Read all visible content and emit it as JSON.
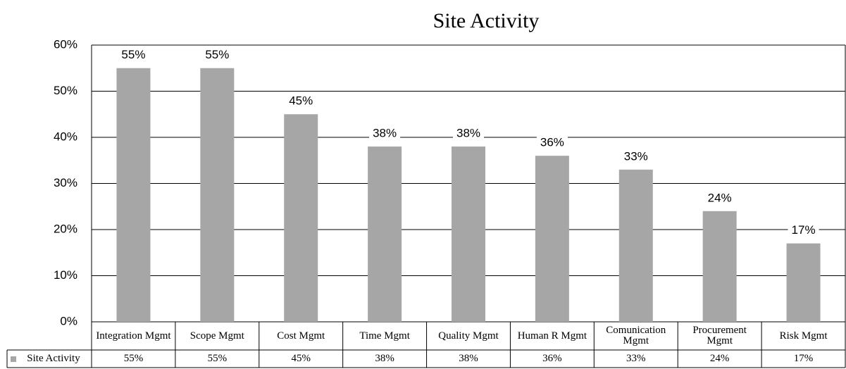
{
  "chart_data": {
    "type": "bar",
    "title": "Site Activity",
    "categories": [
      "Integration Mgmt",
      "Scope Mgmt",
      "Cost Mgmt",
      "Time Mgmt",
      "Quality Mgmt",
      "Human R Mgmt",
      "Comunication Mgmt",
      "Procurement Mgmt",
      "Risk Mgmt"
    ],
    "series": [
      {
        "name": "Site Activity",
        "color": "#a6a6a6",
        "values": [
          55,
          55,
          45,
          38,
          38,
          36,
          33,
          24,
          17
        ],
        "value_labels": [
          "55%",
          "55%",
          "45%",
          "38%",
          "38%",
          "36%",
          "33%",
          "24%",
          "17%"
        ]
      }
    ],
    "ylim": [
      0,
      60
    ],
    "yticks": [
      {
        "value": 0,
        "label": "0%"
      },
      {
        "value": 10,
        "label": "10%"
      },
      {
        "value": 20,
        "label": "20%"
      },
      {
        "value": 30,
        "label": "30%"
      },
      {
        "value": 40,
        "label": "40%"
      },
      {
        "value": 50,
        "label": "50%"
      },
      {
        "value": 60,
        "label": "60%"
      }
    ],
    "grid": true
  }
}
